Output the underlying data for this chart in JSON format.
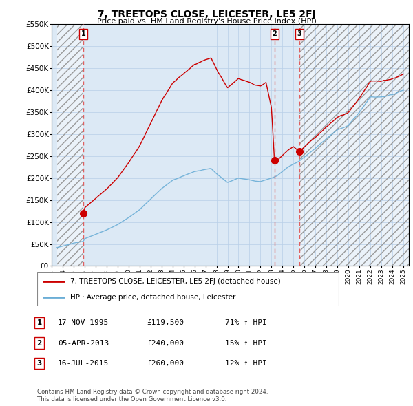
{
  "title": "7, TREETOPS CLOSE, LEICESTER, LE5 2FJ",
  "subtitle": "Price paid vs. HM Land Registry's House Price Index (HPI)",
  "ylabel_ticks": [
    "£0",
    "£50K",
    "£100K",
    "£150K",
    "£200K",
    "£250K",
    "£300K",
    "£350K",
    "£400K",
    "£450K",
    "£500K",
    "£550K"
  ],
  "ytick_values": [
    0,
    50000,
    100000,
    150000,
    200000,
    250000,
    300000,
    350000,
    400000,
    450000,
    500000,
    550000
  ],
  "xmin": 1993.5,
  "xmax": 2025.5,
  "ymin": 0,
  "ymax": 550000,
  "hpi_color": "#6baed6",
  "sale_color": "#cc0000",
  "purchase_dates": [
    1995.88,
    2013.27,
    2015.54
  ],
  "purchase_prices": [
    119500,
    240000,
    260000
  ],
  "purchase_labels": [
    "1",
    "2",
    "3"
  ],
  "vline_color": "#e06060",
  "legend_sale_label": "7, TREETOPS CLOSE, LEICESTER, LE5 2FJ (detached house)",
  "legend_hpi_label": "HPI: Average price, detached house, Leicester",
  "table_data": [
    [
      "1",
      "17-NOV-1995",
      "£119,500",
      "71% ↑ HPI"
    ],
    [
      "2",
      "05-APR-2013",
      "£240,000",
      "15% ↑ HPI"
    ],
    [
      "3",
      "16-JUL-2015",
      "£260,000",
      "12% ↑ HPI"
    ]
  ],
  "footer": "Contains HM Land Registry data © Crown copyright and database right 2024.\nThis data is licensed under the Open Government Licence v3.0.",
  "background_plot": "#dce9f5"
}
